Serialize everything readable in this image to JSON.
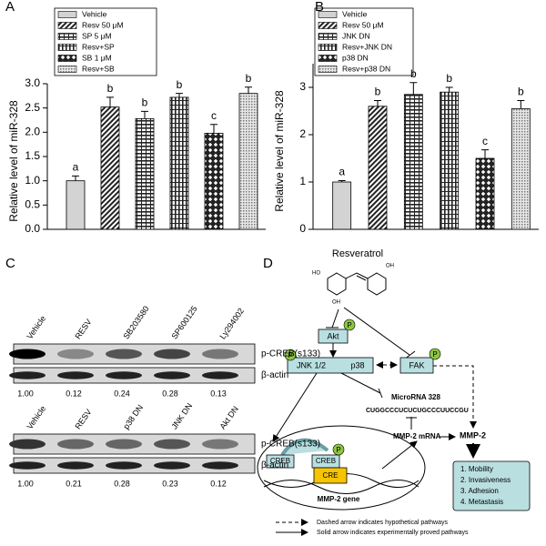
{
  "chart_data": [
    {
      "type": "bar",
      "panel": "A",
      "ylabel": "Relative level of miR-328",
      "categories": [
        "Vehicle",
        "Resv 50 μM",
        "SP 5 μM",
        "Resv+SP",
        "SB 1 μM",
        "Resv+SB"
      ],
      "values": [
        1.0,
        2.52,
        2.28,
        2.72,
        1.98,
        2.8
      ],
      "errors": [
        0.1,
        0.2,
        0.15,
        0.08,
        0.18,
        0.13
      ],
      "significance": [
        "a",
        "b",
        "b",
        "b",
        "c",
        "b"
      ],
      "patterns": [
        "solid",
        "diagonal",
        "hgrid",
        "vlines",
        "diamond",
        "dots"
      ],
      "ylim": [
        0,
        3
      ],
      "yticks": [
        {
          "value": 0,
          "label": "0.0"
        },
        {
          "value": 0.5,
          "label": "0.5"
        },
        {
          "value": 1,
          "label": "1.0"
        },
        {
          "value": 1.5,
          "label": "1.5"
        },
        {
          "value": 2,
          "label": "2.0"
        },
        {
          "value": 2.5,
          "label": "2.5"
        },
        {
          "value": 3,
          "label": "3.0"
        }
      ]
    },
    {
      "type": "bar",
      "panel": "B",
      "ylabel": "Relative level of miR-328",
      "categories": [
        "Vehicle",
        "Resv 50 μM",
        "JNK DN",
        "Resv+JNK DN",
        "p38 DN",
        "Resv+p38 DN"
      ],
      "values": [
        1.0,
        2.6,
        2.85,
        2.9,
        1.5,
        2.55
      ],
      "errors": [
        0.03,
        0.12,
        0.25,
        0.1,
        0.18,
        0.17
      ],
      "significance": [
        "a",
        "b",
        "b",
        "b",
        "c",
        "b"
      ],
      "patterns": [
        "solid",
        "diagonal",
        "hgrid",
        "vlines",
        "diamond",
        "dots"
      ],
      "ylim": [
        0,
        3.5
      ],
      "yticks": [
        0,
        1,
        2,
        3
      ]
    }
  ],
  "panel_c": "C",
  "blots": [
    {
      "lanes": [
        "Vehicle",
        "RESV",
        "SB203580",
        "SP600125",
        "Ly294002"
      ],
      "bands": [
        "p-CREB(s133)",
        "β-actin"
      ],
      "quantification": [
        "1.00",
        "0.12",
        "0.24",
        "0.28",
        "0.13"
      ]
    },
    {
      "lanes": [
        "Vehicle",
        "RESV",
        "p38 DN",
        "JNK DN",
        "Akt DN"
      ],
      "bands": [
        "p-CREB(s133)",
        "β-actin"
      ],
      "quantification": [
        "1.00",
        "0.21",
        "0.28",
        "0.23",
        "0.12"
      ]
    }
  ],
  "diagram": {
    "panel": "D",
    "resveratrol": "Resveratrol",
    "oh_labels": [
      "OH",
      "HO",
      "OH"
    ],
    "phospho": "P",
    "akt": "Akt",
    "jnk": "JNK 1/2",
    "p38": "p38",
    "fak": "FAK",
    "microrna": "MicroRNA 328",
    "sequence": "CUGGCCCUCUCUGCCCUUCCGU",
    "mrna": "MMP-2 mRNA",
    "mmp2": "MMP-2",
    "creb": "CREB",
    "cre": "CRE",
    "gene": "MMP-2 gene",
    "outcomes": [
      "1.   Mobility",
      "2.   Invasiveness",
      "3.   Adhesion",
      "4.   Metastasis"
    ],
    "legend_dashed": "Dashed arrow indicates hypothetical pathways",
    "legend_solid": "Solid arrow indicates experimentally proved pathways"
  }
}
